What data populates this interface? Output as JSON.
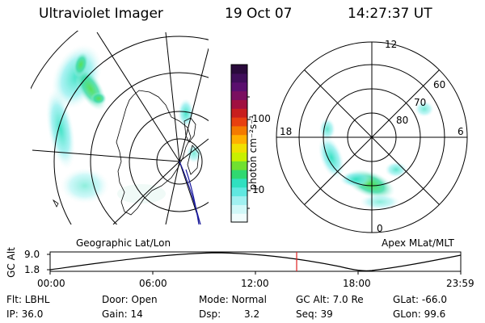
{
  "header": {
    "instrument": "Ultraviolet Imager",
    "date": "19 Oct 07",
    "time": "14:27:37 UT"
  },
  "colorbar": {
    "unit_label": "photon cm⁻²s⁻¹",
    "ticks": [
      "100",
      "10"
    ],
    "colors": [
      "#2a0a3c",
      "#400e5a",
      "#5a0f6e",
      "#7a0f60",
      "#a01040",
      "#c81e1e",
      "#e84010",
      "#f47a00",
      "#ffb000",
      "#f0e000",
      "#c8f000",
      "#70e030",
      "#30d870",
      "#30e0c0",
      "#60e8e0",
      "#a0f0f0",
      "#d0f8f8",
      "#f0fdfd"
    ]
  },
  "left_panel": {
    "caption": "Geographic Lat/Lon",
    "icon": "geographic-map-projection"
  },
  "right_panel": {
    "caption": "Apex MLat/MLT",
    "mlt_labels": [
      "12",
      "18",
      "6",
      "0"
    ],
    "mlat_labels": [
      "60",
      "70",
      "80"
    ]
  },
  "altitude_plot": {
    "ylabel": "GC Alt",
    "yticks": [
      "9.0",
      "1.8"
    ],
    "xticks": [
      "00:00",
      "06:00",
      "12:00",
      "18:00",
      "23:59"
    ],
    "current_time_marker_color": "#e02020"
  },
  "status": {
    "flt": "Flt: LBHL",
    "ip": "IP: 36.0",
    "door": "Door: Open",
    "gain": "Gain: 14",
    "mode": "Mode: Normal",
    "dsp_label": "Dsp:",
    "dsp_value": "3.2",
    "gcalt": "GC Alt: 7.0 Re",
    "seq": "Seq: 39",
    "glat": "GLat: -66.0",
    "glon": "GLon: 99.6"
  }
}
